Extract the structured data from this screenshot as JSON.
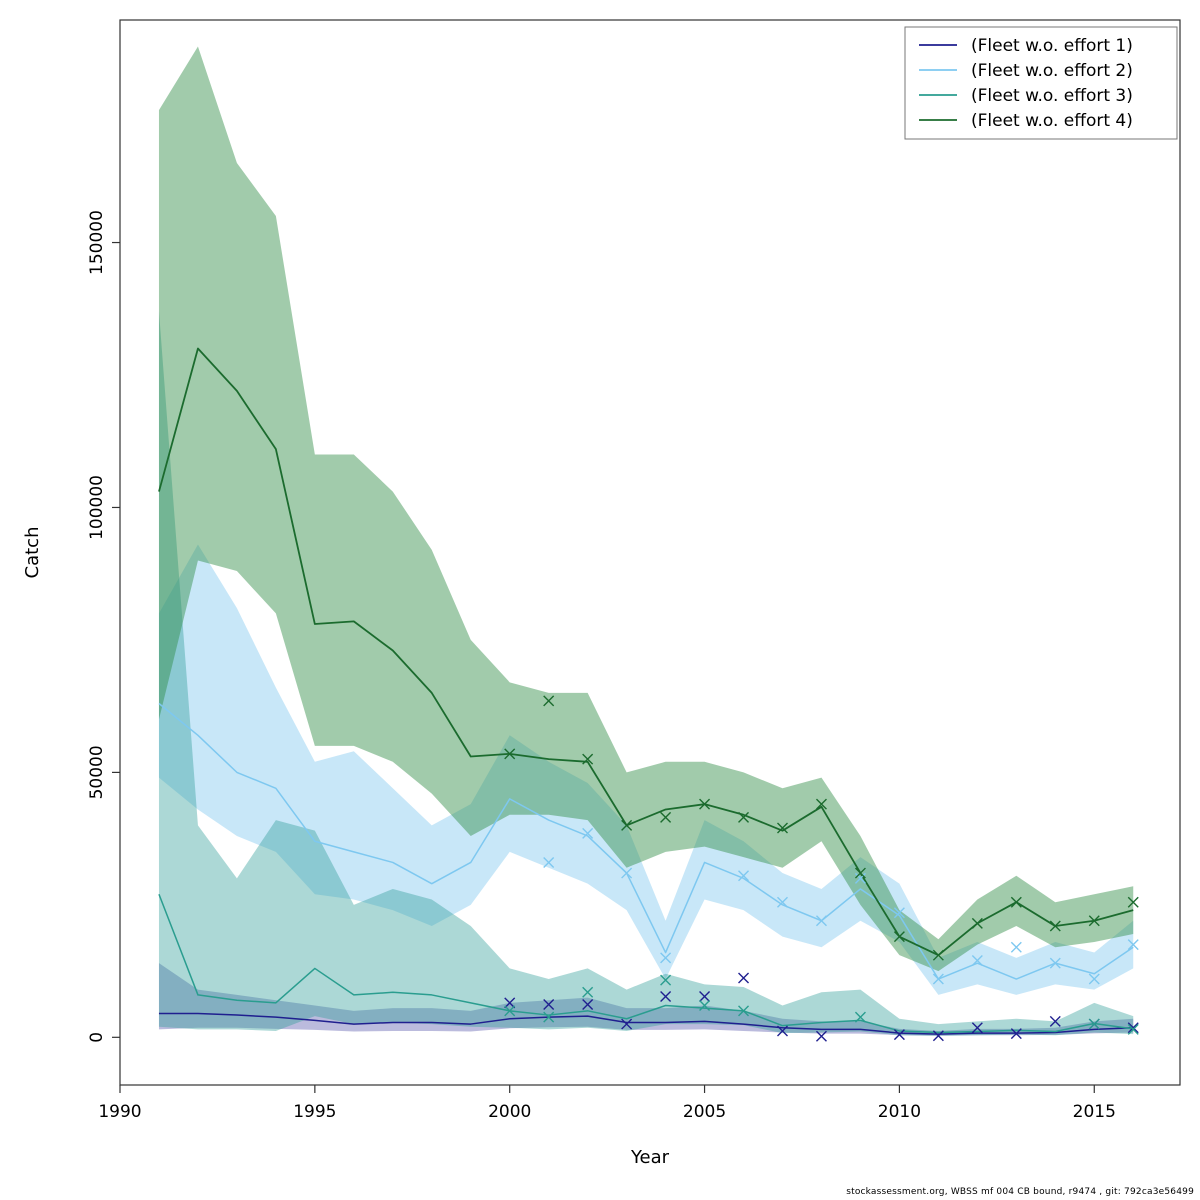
{
  "footer": {
    "text": "stockassessment.org, WBSS  mf  004  CB  bound, r9474 , git: 792ca3e56499"
  },
  "axes": {
    "xlabel": "Year",
    "ylabel": "Catch"
  },
  "chart_data": {
    "type": "line",
    "title": "",
    "xlabel": "Year",
    "ylabel": "Catch",
    "xlim": [
      1990,
      2017.2
    ],
    "ylim": [
      -9000,
      192000
    ],
    "x_ticks": [
      1990,
      1995,
      2000,
      2005,
      2010,
      2015
    ],
    "y_ticks": [
      0,
      50000,
      100000,
      150000
    ],
    "grid": false,
    "legend_position": "top-right",
    "years": [
      1991,
      1992,
      1993,
      1994,
      1995,
      1996,
      1997,
      1998,
      1999,
      2000,
      2001,
      2002,
      2003,
      2004,
      2005,
      2006,
      2007,
      2008,
      2009,
      2010,
      2011,
      2012,
      2013,
      2014,
      2015,
      2016
    ],
    "series": [
      {
        "name": "(Fleet w.o. effort 1)",
        "line_color": "#1f1f8f",
        "band_color": "#3b3b9e",
        "band_opacity": 0.35,
        "line": [
          4500,
          4500,
          4200,
          3800,
          3200,
          2500,
          2800,
          2800,
          2500,
          3500,
          3800,
          4000,
          2800,
          2800,
          3000,
          2500,
          1800,
          1500,
          1500,
          800,
          600,
          800,
          800,
          900,
          1500,
          1800
        ],
        "upper": [
          14000,
          9000,
          8000,
          7000,
          6000,
          5000,
          5500,
          5500,
          5000,
          6500,
          7000,
          7500,
          5500,
          5500,
          6000,
          5000,
          3500,
          3000,
          3000,
          1600,
          1200,
          1600,
          1600,
          1800,
          3000,
          3500
        ],
        "lower": [
          1500,
          1800,
          1800,
          1600,
          1400,
          1100,
          1200,
          1200,
          1100,
          1700,
          1900,
          2000,
          1400,
          1400,
          1500,
          1200,
          900,
          700,
          700,
          400,
          300,
          400,
          400,
          450,
          750,
          900
        ],
        "obs_years": [
          2000,
          2001,
          2002,
          2003,
          2004,
          2005,
          2006,
          2007,
          2008,
          2010,
          2011,
          2012,
          2013,
          2014,
          2015,
          2016
        ],
        "obs_values": [
          6500,
          6200,
          6200,
          2500,
          7700,
          7700,
          11200,
          1200,
          200,
          500,
          300,
          1800,
          700,
          3000,
          2500,
          1800
        ]
      },
      {
        "name": "(Fleet w.o. effort 2)",
        "line_color": "#7ec8f0",
        "band_color": "#9bd4f2",
        "band_opacity": 0.55,
        "line": [
          63000,
          57000,
          50000,
          47000,
          37000,
          35000,
          33000,
          29000,
          33000,
          45000,
          41000,
          38000,
          31000,
          16000,
          33000,
          30000,
          25000,
          22000,
          28000,
          23000,
          11000,
          14000,
          11000,
          14000,
          12000,
          17000
        ],
        "upper": [
          80000,
          93000,
          81000,
          66000,
          52000,
          54000,
          47000,
          40000,
          44000,
          57000,
          52000,
          48000,
          40000,
          22000,
          41000,
          37000,
          31000,
          28000,
          34000,
          29000,
          15000,
          18000,
          15000,
          18000,
          16000,
          22000
        ],
        "lower": [
          49000,
          43000,
          38000,
          35000,
          27000,
          26000,
          24000,
          21000,
          25000,
          35000,
          32000,
          29000,
          24000,
          11000,
          26000,
          24000,
          19000,
          17000,
          22000,
          18000,
          8000,
          10000,
          8000,
          10000,
          9000,
          13000
        ],
        "obs_years": [
          2001,
          2002,
          2003,
          2004,
          2006,
          2007,
          2008,
          2009,
          2010,
          2011,
          2012,
          2013,
          2014,
          2015,
          2016
        ],
        "obs_values": [
          33000,
          38500,
          31000,
          15000,
          30500,
          25500,
          22000,
          30000,
          23500,
          11000,
          14500,
          17000,
          14000,
          11000,
          17500
        ]
      },
      {
        "name": "(Fleet w.o. effort 3)",
        "line_color": "#2a9d8f",
        "band_color": "#2f9e99",
        "band_opacity": 0.4,
        "line": [
          27000,
          8000,
          7000,
          6500,
          13000,
          8000,
          8500,
          8000,
          6500,
          5000,
          4200,
          5000,
          3500,
          6000,
          5500,
          5000,
          2200,
          2800,
          3200,
          1200,
          900,
          1100,
          1300,
          1100,
          2600,
          1600
        ],
        "upper": [
          137000,
          40000,
          30000,
          41000,
          39000,
          25000,
          28000,
          26000,
          21000,
          13000,
          11000,
          13000,
          9000,
          12000,
          10000,
          9500,
          6000,
          8500,
          9000,
          3500,
          2500,
          3000,
          3500,
          3000,
          6500,
          4000
        ],
        "lower": [
          2000,
          1500,
          1500,
          1200,
          4000,
          2500,
          2800,
          2500,
          2000,
          1800,
          1500,
          1800,
          1200,
          2500,
          2500,
          2300,
          800,
          900,
          1100,
          400,
          300,
          400,
          500,
          400,
          900,
          600
        ],
        "obs_years": [
          2000,
          2001,
          2002,
          2004,
          2005,
          2006,
          2009,
          2015,
          2016
        ],
        "obs_values": [
          5000,
          3800,
          8500,
          10800,
          6000,
          5000,
          3800,
          2500,
          1500
        ]
      },
      {
        "name": "(Fleet w.o. effort 4)",
        "line_color": "#1b6b2e",
        "band_color": "#2e8b45",
        "band_opacity": 0.45,
        "line": [
          103000,
          130000,
          122000,
          111000,
          78000,
          78500,
          73000,
          65000,
          53000,
          53500,
          52500,
          52000,
          40000,
          43000,
          44000,
          42000,
          39000,
          43500,
          31000,
          19000,
          15500,
          21500,
          25500,
          21000,
          22000,
          24000
        ],
        "upper": [
          175000,
          187000,
          165000,
          155000,
          110000,
          110000,
          103000,
          92000,
          75000,
          67000,
          65000,
          65000,
          50000,
          52000,
          52000,
          50000,
          47000,
          49000,
          38000,
          24000,
          18500,
          26000,
          30500,
          25500,
          27000,
          28500
        ],
        "lower": [
          60000,
          90000,
          88000,
          80000,
          55000,
          55000,
          52000,
          46000,
          38000,
          42000,
          42000,
          41000,
          32000,
          35000,
          36000,
          34000,
          32000,
          37000,
          25000,
          15500,
          12500,
          17500,
          21000,
          17000,
          18000,
          19500
        ],
        "obs_years": [
          2000,
          2001,
          2002,
          2003,
          2004,
          2005,
          2006,
          2007,
          2008,
          2009,
          2010,
          2011,
          2012,
          2013,
          2014,
          2015,
          2016
        ],
        "obs_values": [
          53500,
          63500,
          52500,
          40000,
          41500,
          44000,
          41500,
          39500,
          44000,
          31000,
          19000,
          15500,
          21500,
          25500,
          21000,
          22000,
          25500
        ]
      }
    ]
  }
}
